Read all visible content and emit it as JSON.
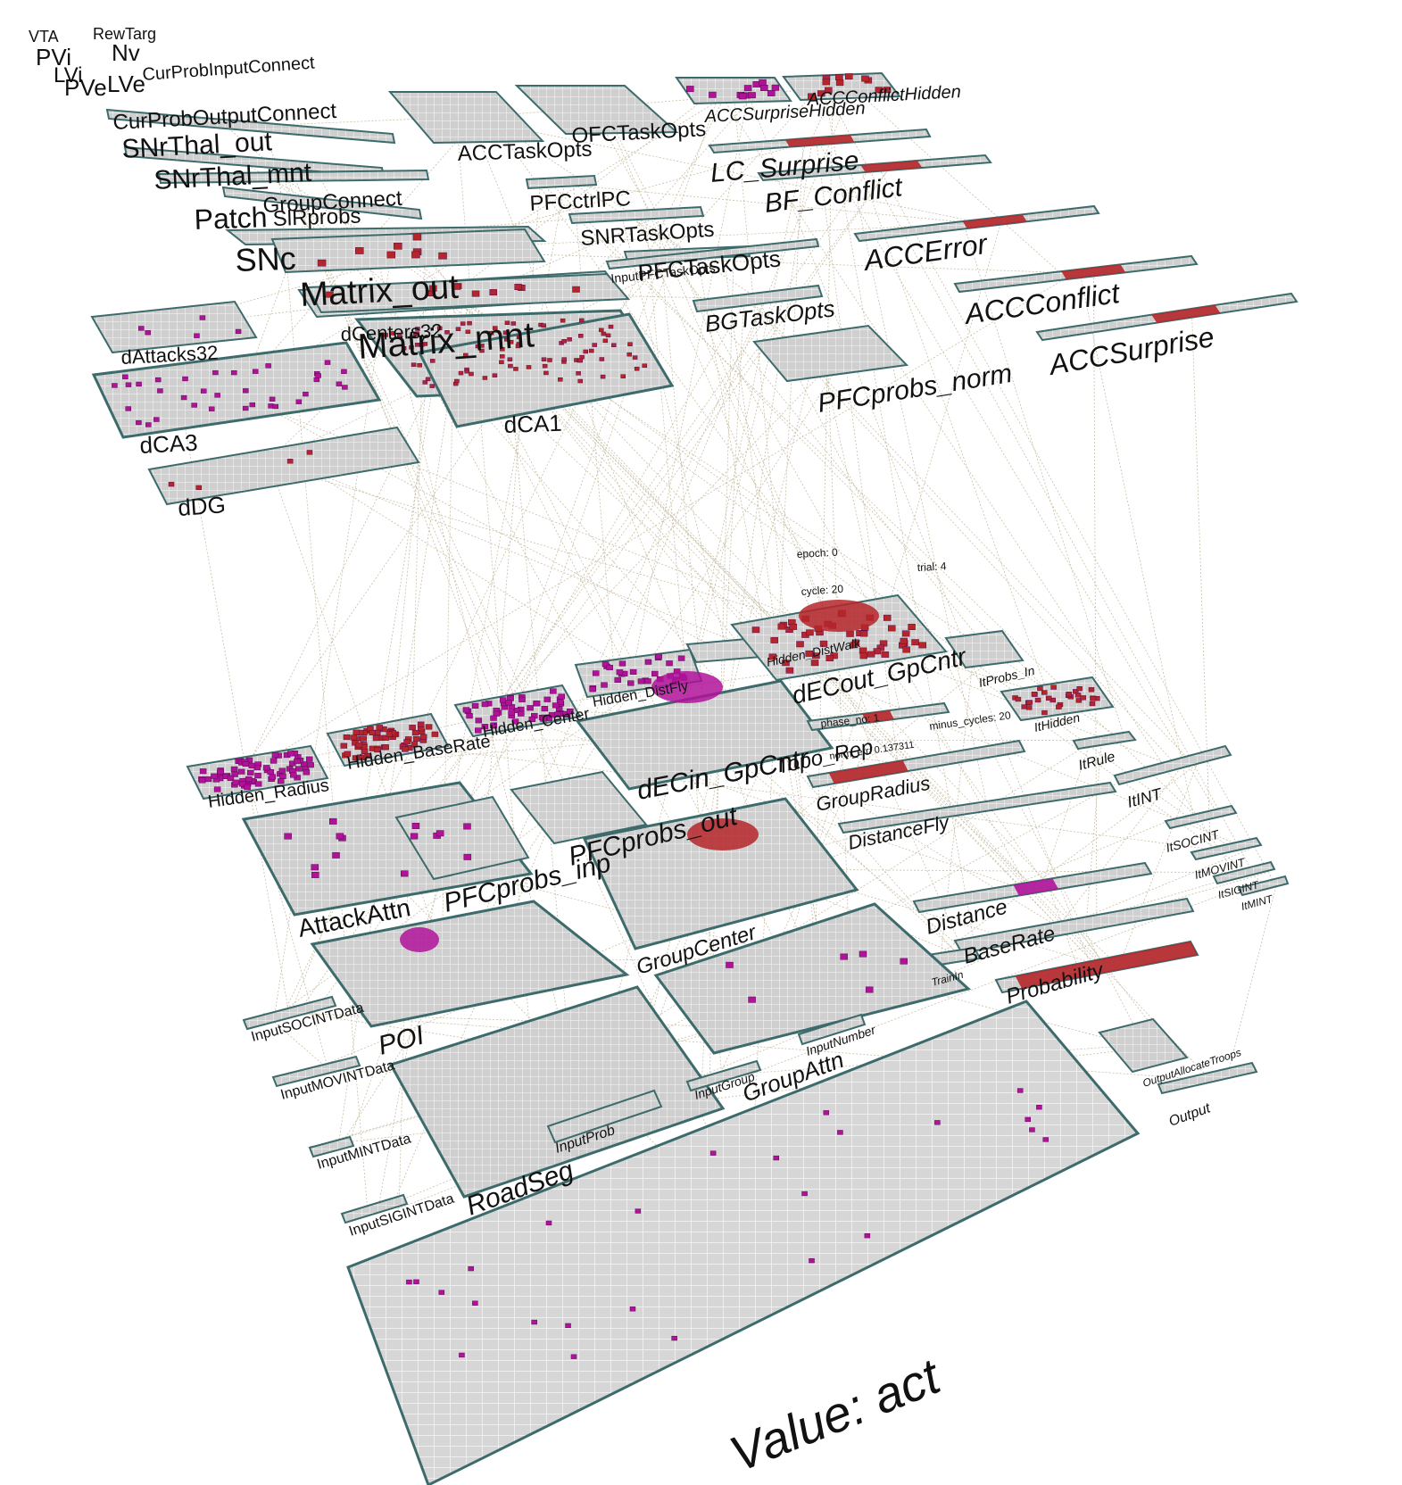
{
  "view": {
    "value_label": "Value: act"
  },
  "status": {
    "epoch": "epoch: 0",
    "trial": "trial: 4",
    "cycle": "cycle: 20",
    "phase_no": "phase_no: 1",
    "minus_cycles": "minus_cycles: 20",
    "norm_err": "norm_err: 0.137311"
  },
  "colors": {
    "layer_fill": "#c9c9c9",
    "layer_border": "#3d6b6b",
    "unit_magenta": "#b0129a",
    "unit_red": "#b5262a",
    "connection": "#c8bfa6"
  },
  "layers": [
    {
      "id": "vta",
      "name": "VTA"
    },
    {
      "id": "rewtarg",
      "name": "RewTarg"
    },
    {
      "id": "pvi",
      "name": "PVi"
    },
    {
      "id": "nv",
      "name": "Nv"
    },
    {
      "id": "lvi",
      "name": "LVi"
    },
    {
      "id": "pve",
      "name": "PVe"
    },
    {
      "id": "lve",
      "name": "LVe"
    },
    {
      "id": "curprobinputconnect",
      "name": "CurProbInputConnect"
    },
    {
      "id": "curproboutputconnect",
      "name": "CurProbOutputConnect"
    },
    {
      "id": "snrthal_out",
      "name": "SNrThal_out"
    },
    {
      "id": "snrthal_mnt",
      "name": "SNrThal_mnt"
    },
    {
      "id": "patch",
      "name": "Patch"
    },
    {
      "id": "groupconnect",
      "name": "GroupConnect"
    },
    {
      "id": "slrprobs",
      "name": "SlRprobs"
    },
    {
      "id": "snc",
      "name": "SNc"
    },
    {
      "id": "matrix_out",
      "name": "Matrix_out"
    },
    {
      "id": "matrix_mnt",
      "name": "Matrix_mnt"
    },
    {
      "id": "dcenters32",
      "name": "dCenters32"
    },
    {
      "id": "dattacks32",
      "name": "dAttacks32"
    },
    {
      "id": "dca3",
      "name": "dCA3"
    },
    {
      "id": "dca1",
      "name": "dCA1"
    },
    {
      "id": "ddg",
      "name": "dDG"
    },
    {
      "id": "acctaskopts",
      "name": "ACCTaskOpts"
    },
    {
      "id": "ofctaskopts",
      "name": "OFCTaskOpts"
    },
    {
      "id": "pfcctrlpc",
      "name": "PFCctrlPC"
    },
    {
      "id": "snrtaskopts",
      "name": "SNRTaskOpts"
    },
    {
      "id": "pfctaskopts",
      "name": "PFCTaskOpts"
    },
    {
      "id": "inputpfctaskopts",
      "name": "InputPFCTaskOpts"
    },
    {
      "id": "bgtaskopts",
      "name": "BGTaskOpts"
    },
    {
      "id": "pfcprobs_norm",
      "name": "PFCprobs_norm"
    },
    {
      "id": "accsurprisehidden",
      "name": "ACCSurpriseHidden"
    },
    {
      "id": "accconflicthidden",
      "name": "ACCConflictHidden"
    },
    {
      "id": "lc_surprise",
      "name": "LC_Surprise"
    },
    {
      "id": "bf_conflict",
      "name": "BF_Conflict"
    },
    {
      "id": "accerror",
      "name": "ACCError"
    },
    {
      "id": "accconflict",
      "name": "ACCConflict"
    },
    {
      "id": "accsurprise",
      "name": "ACCSurprise"
    },
    {
      "id": "hidden_radius",
      "name": "Hidden_Radius"
    },
    {
      "id": "hidden_baserate",
      "name": "Hidden_BaseRate"
    },
    {
      "id": "hidden_center",
      "name": "Hidden_Center"
    },
    {
      "id": "hidden_distfly",
      "name": "Hidden_DistFly"
    },
    {
      "id": "hidden_distwalk",
      "name": "Hidden_DistWalk"
    },
    {
      "id": "decin_gpcntr",
      "name": "dECin_GpCntr"
    },
    {
      "id": "decout_gpcntr",
      "name": "dECout_GpCntr"
    },
    {
      "id": "itprobs_in",
      "name": "ItProbs_In"
    },
    {
      "id": "ithidden",
      "name": "ItHidden"
    },
    {
      "id": "itrule",
      "name": "ItRule"
    },
    {
      "id": "itint",
      "name": "ItINT"
    },
    {
      "id": "itsocint",
      "name": "ItSOCINT"
    },
    {
      "id": "itmovint",
      "name": "ItMOVINT"
    },
    {
      "id": "itsigint",
      "name": "ItSIGINT"
    },
    {
      "id": "itmint",
      "name": "ItMINT"
    },
    {
      "id": "topo_rep",
      "name": "Topo_Rep"
    },
    {
      "id": "groupradius",
      "name": "GroupRadius"
    },
    {
      "id": "distancefly",
      "name": "DistanceFly"
    },
    {
      "id": "distance",
      "name": "Distance"
    },
    {
      "id": "baserate",
      "name": "BaseRate"
    },
    {
      "id": "probability",
      "name": "Probability"
    },
    {
      "id": "attackattn",
      "name": "AttackAttn"
    },
    {
      "id": "pfcprobs_inp",
      "name": "PFCprobs_inp"
    },
    {
      "id": "pfcprobs_out",
      "name": "PFCprobs_out"
    },
    {
      "id": "groupcenter",
      "name": "GroupCenter"
    },
    {
      "id": "poi",
      "name": "POI"
    },
    {
      "id": "groupattn",
      "name": "GroupAttn"
    },
    {
      "id": "roadseg",
      "name": "RoadSeg"
    },
    {
      "id": "inputsocintdata",
      "name": "InputSOCINTData"
    },
    {
      "id": "inputmovintdata",
      "name": "InputMOVINTData"
    },
    {
      "id": "inputmintdata",
      "name": "InputMINTData"
    },
    {
      "id": "inputsigintdata",
      "name": "InputSIGINTData"
    },
    {
      "id": "inputprob",
      "name": "InputProb"
    },
    {
      "id": "inputgroup",
      "name": "InputGroup"
    },
    {
      "id": "inputnumber",
      "name": "InputNumber"
    },
    {
      "id": "trainin",
      "name": "TrainIn"
    },
    {
      "id": "outputallocatetroops",
      "name": "OutputAllocateTroops"
    },
    {
      "id": "output",
      "name": "Output"
    }
  ]
}
